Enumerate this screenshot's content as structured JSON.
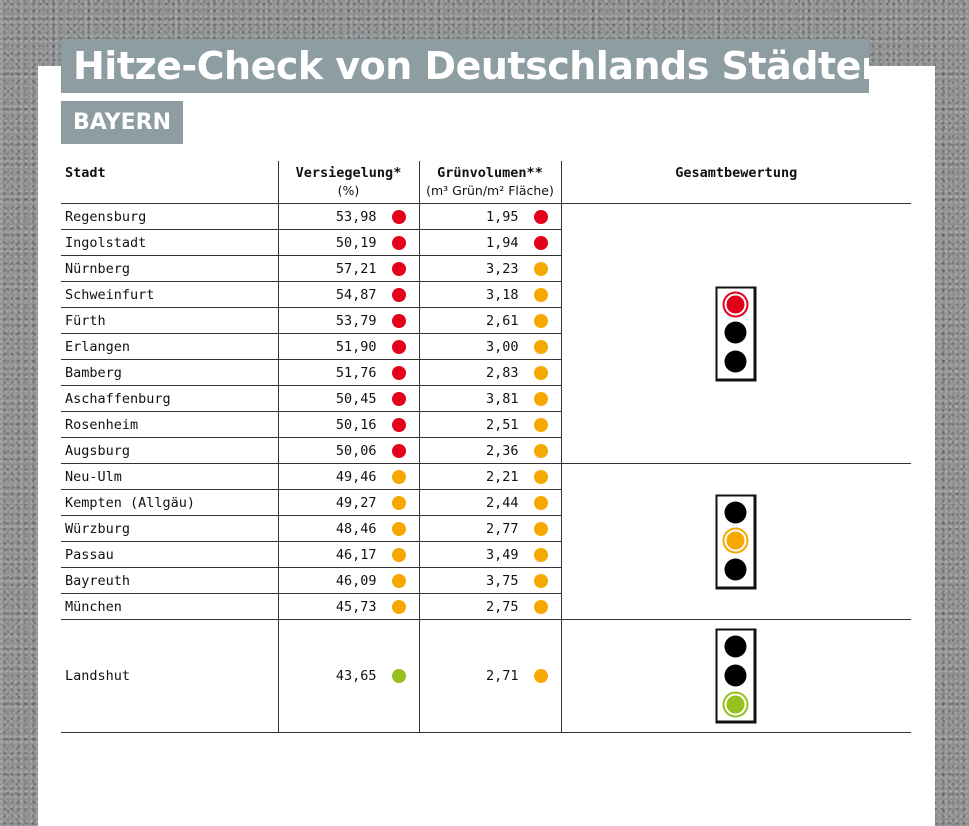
{
  "title": "Hitze-Check von Deutschlands Städten",
  "state": "BAYERN",
  "columns": {
    "city": "Stadt",
    "sealing": "Versiegelung*",
    "sealing_unit": "(%)",
    "green": "Grünvolumen**",
    "green_unit": "(m³ Grün/m² Fläche)",
    "overall": "Gesamtbewertung"
  },
  "colors": {
    "red": "#e2001a",
    "orange": "#f6a800",
    "green": "#95c11f"
  },
  "groups": [
    {
      "rating": "red",
      "rows": [
        {
          "city": "Regensburg",
          "sealing": "53,98",
          "sealing_status": "red",
          "green": "1,95",
          "green_status": "red"
        },
        {
          "city": "Ingolstadt",
          "sealing": "50,19",
          "sealing_status": "red",
          "green": "1,94",
          "green_status": "red"
        },
        {
          "city": "Nürnberg",
          "sealing": "57,21",
          "sealing_status": "red",
          "green": "3,23",
          "green_status": "orange"
        },
        {
          "city": "Schweinfurt",
          "sealing": "54,87",
          "sealing_status": "red",
          "green": "3,18",
          "green_status": "orange"
        },
        {
          "city": "Fürth",
          "sealing": "53,79",
          "sealing_status": "red",
          "green": "2,61",
          "green_status": "orange"
        },
        {
          "city": "Erlangen",
          "sealing": "51,90",
          "sealing_status": "red",
          "green": "3,00",
          "green_status": "orange"
        },
        {
          "city": "Bamberg",
          "sealing": "51,76",
          "sealing_status": "red",
          "green": "2,83",
          "green_status": "orange"
        },
        {
          "city": "Aschaffenburg",
          "sealing": "50,45",
          "sealing_status": "red",
          "green": "3,81",
          "green_status": "orange"
        },
        {
          "city": "Rosenheim",
          "sealing": "50,16",
          "sealing_status": "red",
          "green": "2,51",
          "green_status": "orange"
        },
        {
          "city": "Augsburg",
          "sealing": "50,06",
          "sealing_status": "red",
          "green": "2,36",
          "green_status": "orange"
        }
      ]
    },
    {
      "rating": "orange",
      "rows": [
        {
          "city": "Neu-Ulm",
          "sealing": "49,46",
          "sealing_status": "orange",
          "green": "2,21",
          "green_status": "orange"
        },
        {
          "city": "Kempten (Allgäu)",
          "sealing": "49,27",
          "sealing_status": "orange",
          "green": "2,44",
          "green_status": "orange"
        },
        {
          "city": "Würzburg",
          "sealing": "48,46",
          "sealing_status": "orange",
          "green": "2,77",
          "green_status": "orange"
        },
        {
          "city": "Passau",
          "sealing": "46,17",
          "sealing_status": "orange",
          "green": "3,49",
          "green_status": "orange"
        },
        {
          "city": "Bayreuth",
          "sealing": "46,09",
          "sealing_status": "orange",
          "green": "3,75",
          "green_status": "orange"
        },
        {
          "city": "München",
          "sealing": "45,73",
          "sealing_status": "orange",
          "green": "2,75",
          "green_status": "orange"
        }
      ]
    },
    {
      "rating": "green",
      "rows": [
        {
          "city": "Landshut",
          "sealing": "43,65",
          "sealing_status": "green",
          "green": "2,71",
          "green_status": "orange"
        }
      ]
    }
  ]
}
